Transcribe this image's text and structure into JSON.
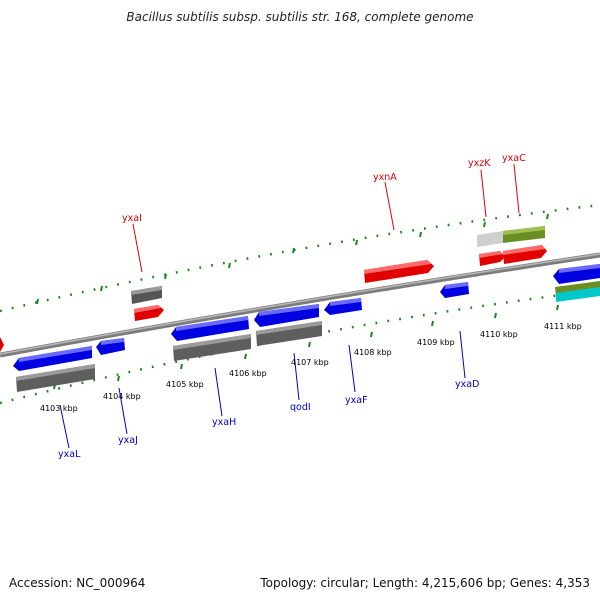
{
  "title": "Bacillus subtilis subsp. subtilis str. 168, complete genome",
  "footer": {
    "accession": "Accession: NC_000964",
    "summary": "Topology: circular; Length: 4,215,606 bp; Genes: 4,353"
  },
  "colors": {
    "backbone": "#8c8c8c",
    "forward_feature": "#ff0000",
    "reverse_feature": "#0000ff",
    "rna_feature": "#6a6a6a",
    "pseudo_feature": "#cfcfcf",
    "other_feature": "#6b8e23",
    "extra_feature": "#00c8c8",
    "tick": "#1a8a1a",
    "forward_label": "#dd0000",
    "reverse_label": "#0000cc"
  },
  "scale": {
    "unit": "kbp",
    "ticks": [
      "4103 kbp",
      "4104 kbp",
      "4105 kbp",
      "4106 kbp",
      "4107 kbp",
      "4108 kbp",
      "4109 kbp",
      "4110 kbp",
      "4111 kbp"
    ]
  },
  "labels": {
    "forward": [
      "yxaI",
      "yxnA",
      "yxzK",
      "yxaC"
    ],
    "reverse": [
      "yxaL",
      "yxaJ",
      "yxaH",
      "qodI",
      "yxaF",
      "yxaD"
    ]
  }
}
